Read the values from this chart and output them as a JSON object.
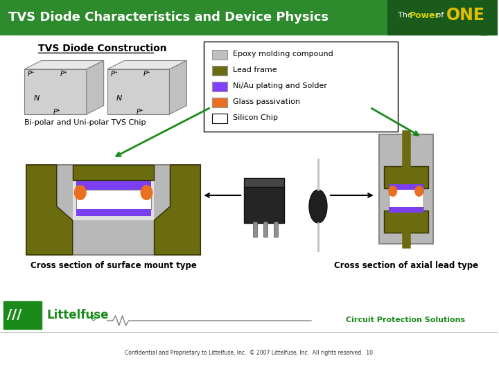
{
  "title": "TVS Diode Characteristics and Device Physics",
  "subtitle": "TVS Diode Construction",
  "subtitle2": "Cross section of surface mount type",
  "subtitle3": "Cross section of axial lead type",
  "subtitle4": "Bi-polar and Uni-polar TVS Chip",
  "header_bg": "#2d8a2d",
  "header_text_color": "#ffffff",
  "bg_color": "#ffffff",
  "footer_text": "Confidential and Proprietary to Littelfuse, Inc.  © 2007 Littelfuse, Inc.  All rights reserved.  10",
  "circuit_text": "Circuit Protection Solutions",
  "legend_items": [
    {
      "label": "Epoxy molding compound",
      "color": "#c0c0c0"
    },
    {
      "label": "Lead frame",
      "color": "#6b6b10"
    },
    {
      "label": "Ni/Au plating and Solder",
      "color": "#8040ff"
    },
    {
      "label": "Glass passivation",
      "color": "#e87020"
    },
    {
      "label": "Silicon Chip",
      "color": "#ffffff"
    }
  ],
  "olive": "#6b6b10",
  "gray": "#b8b8b8",
  "purple": "#7b3ff0",
  "orange": "#e87020",
  "white": "#ffffff",
  "green_dark": "#1a7a1a",
  "header_green": "#2d8a2d"
}
